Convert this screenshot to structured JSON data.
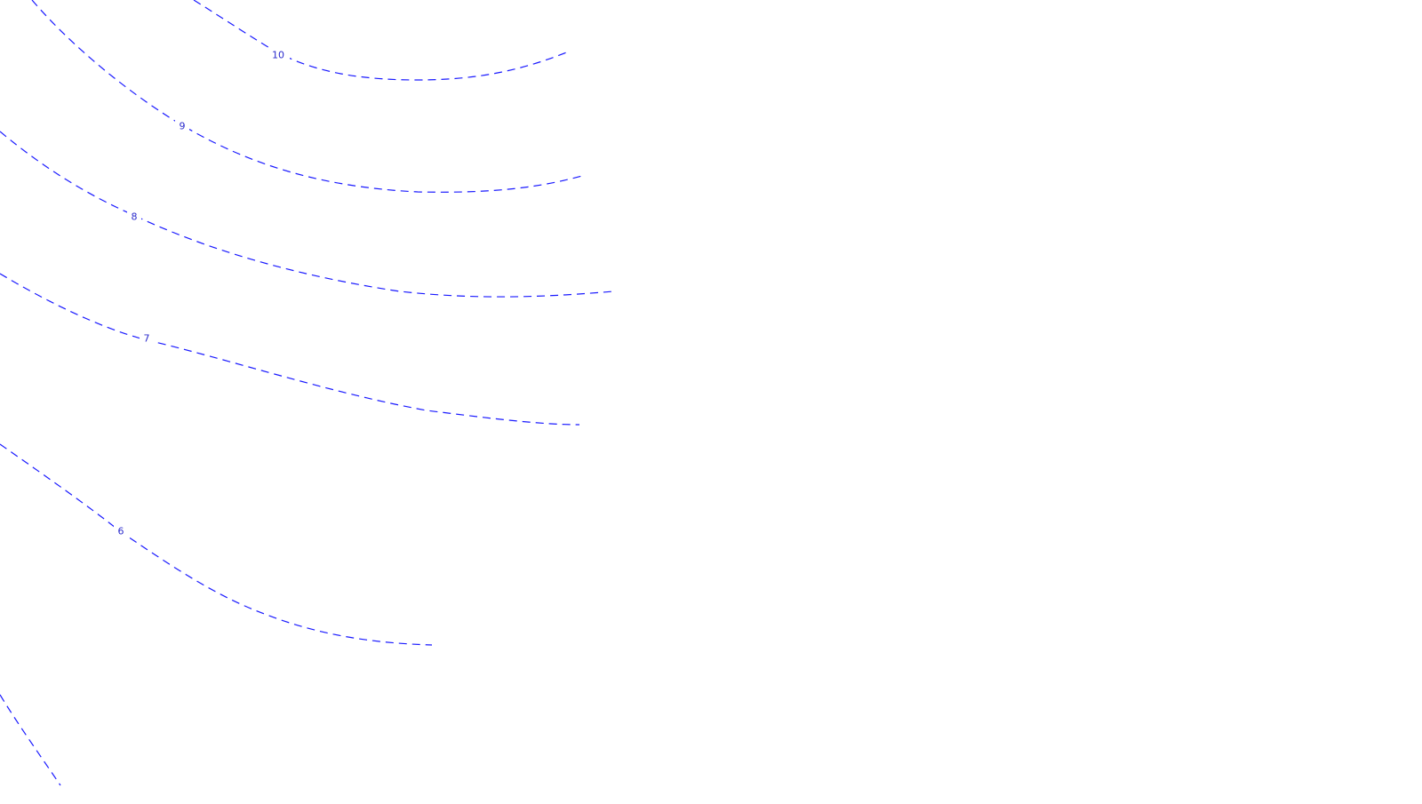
{
  "map": {
    "type": "contour",
    "line_style": "dashed",
    "colors": {
      "contour": "#1a1aff",
      "label": "#2a2acc",
      "background": "#ffffff"
    },
    "contours": [
      {
        "label": "10"
      },
      {
        "label": "9"
      },
      {
        "label": "8"
      },
      {
        "label": "7"
      },
      {
        "label": "6"
      },
      {
        "label": ""
      }
    ]
  }
}
